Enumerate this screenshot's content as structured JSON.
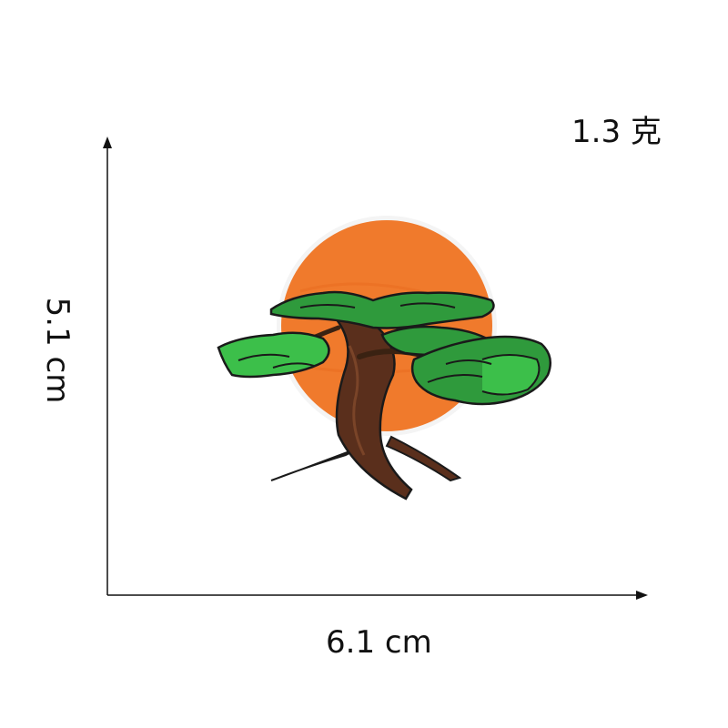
{
  "weight": "1.3 克",
  "dimensions": {
    "width": "6.1 cm",
    "height": "5.1 cm"
  },
  "colors": {
    "sun": "#f07a2c",
    "foliage": "#2f9a3c",
    "foliage_light": "#3cbf4a",
    "trunk": "#5a2f1c",
    "outline": "#1a1a1a",
    "axis": "#111111"
  },
  "icons": [
    "bonsai-tree-patch-image",
    "vertical-axis-arrow",
    "horizontal-axis-arrow"
  ]
}
